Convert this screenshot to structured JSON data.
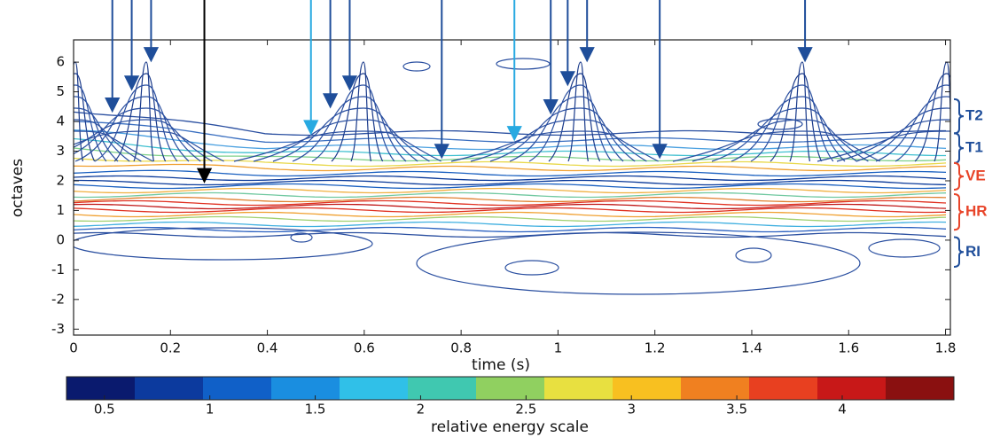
{
  "chart_data": {
    "type": "contour",
    "xlabel": "time (s)",
    "ylabel": "octaves",
    "xlim": [
      0,
      1.81
    ],
    "ylim": [
      -3.2,
      6.75
    ],
    "xticks": [
      0,
      0.2,
      0.4,
      0.6,
      0.8,
      1,
      1.2,
      1.4,
      1.6,
      1.8
    ],
    "yticks": [
      -3,
      -2,
      -1,
      0,
      1,
      2,
      3,
      4,
      5,
      6
    ],
    "arrows": [
      {
        "x": 0.08,
        "y": 4.36,
        "color": "#1f4e9a"
      },
      {
        "x": 0.12,
        "y": 5.1,
        "color": "#1f4e9a"
      },
      {
        "x": 0.16,
        "y": 6.06,
        "color": "#1f4e9a"
      },
      {
        "x": 0.27,
        "y": 1.98,
        "color": "#000000"
      },
      {
        "x": 0.49,
        "y": 3.6,
        "color": "#27a9e1"
      },
      {
        "x": 0.53,
        "y": 4.5,
        "color": "#1f4e9a"
      },
      {
        "x": 0.57,
        "y": 5.1,
        "color": "#1f4e9a"
      },
      {
        "x": 0.76,
        "y": 2.8,
        "color": "#1f4e9a"
      },
      {
        "x": 0.91,
        "y": 3.4,
        "color": "#27a9e1"
      },
      {
        "x": 0.985,
        "y": 4.3,
        "color": "#1f4e9a"
      },
      {
        "x": 1.02,
        "y": 5.25,
        "color": "#1f4e9a"
      },
      {
        "x": 1.06,
        "y": 6.06,
        "color": "#1f4e9a"
      },
      {
        "x": 1.21,
        "y": 2.8,
        "color": "#1f4e9a"
      },
      {
        "x": 1.51,
        "y": 6.06,
        "color": "#1f4e9a"
      }
    ],
    "bands": [
      {
        "label": "T2",
        "range": [
          3.6,
          4.75
        ],
        "color": "#1f4e9a"
      },
      {
        "label": "T1",
        "range": [
          2.6,
          3.6
        ],
        "color": "#1f4e9a"
      },
      {
        "label": "VE",
        "range": [
          1.7,
          2.6
        ],
        "color": "#e8452a"
      },
      {
        "label": "HR",
        "range": [
          0.35,
          1.55
        ],
        "color": "#e8452a"
      },
      {
        "label": "RI",
        "range": [
          -0.9,
          0.1
        ],
        "color": "#1f4e9a"
      }
    ],
    "colorbar": {
      "label": "relative energy scale",
      "lim": [
        0.32,
        4.53
      ],
      "ticks": [
        0.5,
        1,
        1.5,
        2,
        2.5,
        3,
        3.5,
        4
      ],
      "colors": [
        "#0a1a6e",
        "#0c3a9e",
        "#1060c8",
        "#1a8ee0",
        "#30c0e8",
        "#40c8b0",
        "#90d060",
        "#e8e040",
        "#f8c020",
        "#f08020",
        "#e84020",
        "#c81818",
        "#8a1010"
      ]
    }
  }
}
